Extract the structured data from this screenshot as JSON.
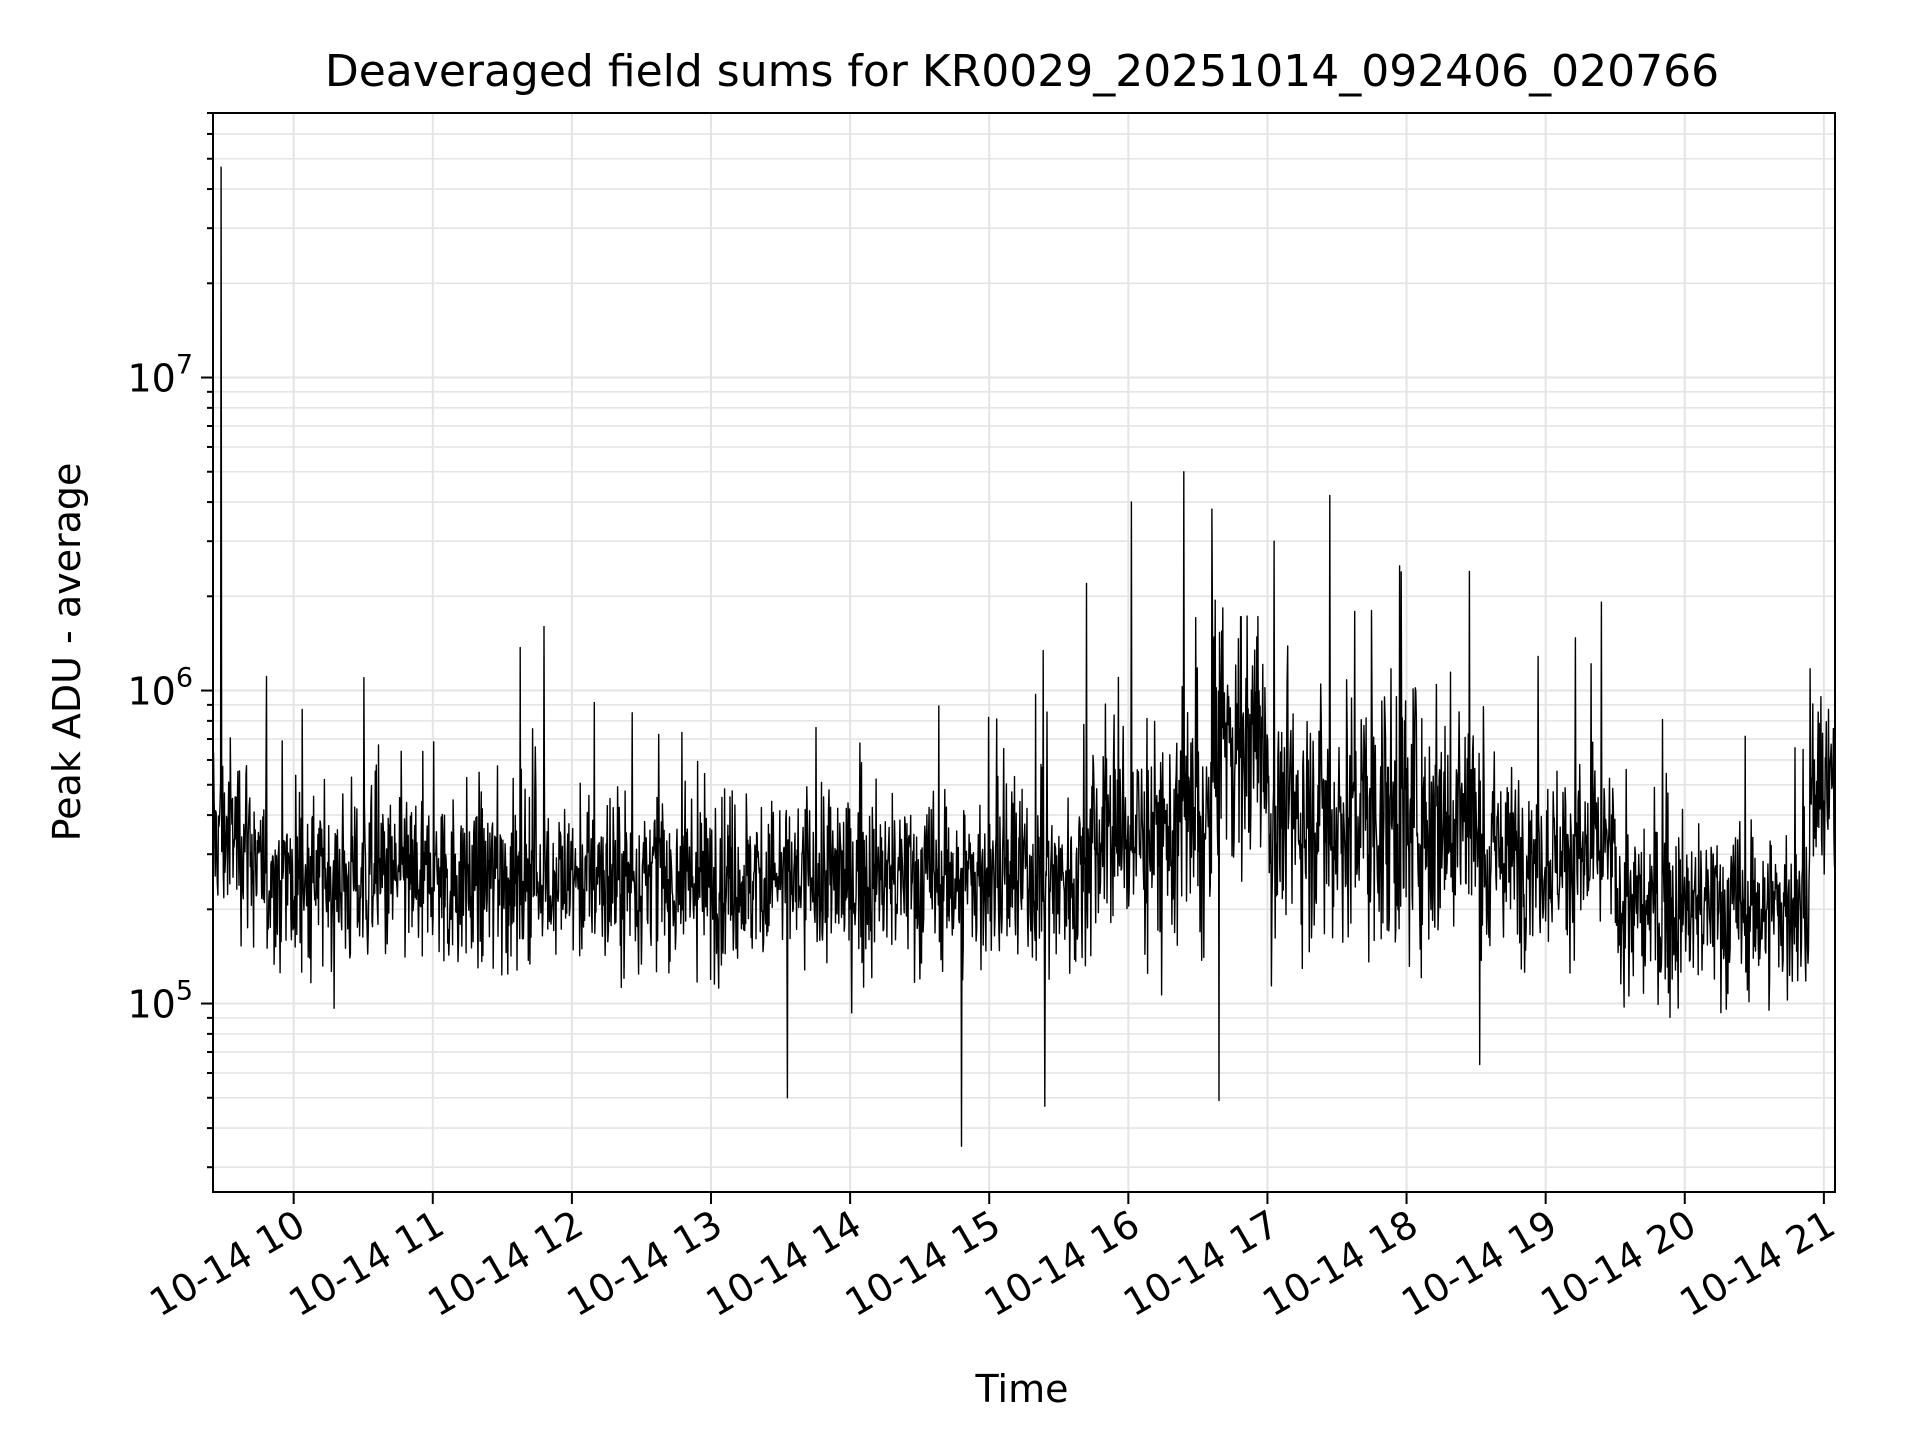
{
  "chart_data": {
    "type": "line",
    "title": "Deaveraged field sums for KR0029_20251014_092406_020766",
    "xlabel": "Time",
    "ylabel": "Peak ADU - average",
    "yscale": "log",
    "ylim": [
      25000,
      70000000
    ],
    "xlim_hours": [
      9.42,
      21.08
    ],
    "grid": true,
    "x_ticks": [
      {
        "hour": 10,
        "label": "10-14 10"
      },
      {
        "hour": 11,
        "label": "10-14 11"
      },
      {
        "hour": 12,
        "label": "10-14 12"
      },
      {
        "hour": 13,
        "label": "10-14 13"
      },
      {
        "hour": 14,
        "label": "10-14 14"
      },
      {
        "hour": 15,
        "label": "10-14 15"
      },
      {
        "hour": 16,
        "label": "10-14 16"
      },
      {
        "hour": 17,
        "label": "10-14 17"
      },
      {
        "hour": 18,
        "label": "10-14 18"
      },
      {
        "hour": 19,
        "label": "10-14 19"
      },
      {
        "hour": 20,
        "label": "10-14 20"
      },
      {
        "hour": 21,
        "label": "10-14 21"
      }
    ],
    "y_ticks": [
      {
        "value": 100000,
        "base": "10",
        "exp": "5"
      },
      {
        "value": 1000000,
        "base": "10",
        "exp": "6"
      },
      {
        "value": 10000000,
        "base": "10",
        "exp": "7"
      }
    ],
    "series": [
      {
        "name": "field sum",
        "color": "#000000",
        "baseline_segments": [
          {
            "start_hour": 9.42,
            "end_hour": 9.7,
            "level": 350000
          },
          {
            "start_hour": 9.7,
            "end_hour": 15.7,
            "level": 250000
          },
          {
            "start_hour": 15.7,
            "end_hour": 16.6,
            "level": 350000
          },
          {
            "start_hour": 16.6,
            "end_hour": 17.0,
            "level": 700000
          },
          {
            "start_hour": 17.0,
            "end_hour": 18.5,
            "level": 400000
          },
          {
            "start_hour": 18.5,
            "end_hour": 19.5,
            "level": 300000
          },
          {
            "start_hour": 19.5,
            "end_hour": 20.9,
            "level": 200000
          },
          {
            "start_hour": 20.9,
            "end_hour": 21.08,
            "level": 450000
          }
        ],
        "notable_points": [
          {
            "hour": 9.48,
            "value": 47000000
          },
          {
            "hour": 11.8,
            "value": 1600000
          },
          {
            "hour": 15.7,
            "value": 2200000
          },
          {
            "hour": 16.02,
            "value": 4000000
          },
          {
            "hour": 16.4,
            "value": 5000000
          },
          {
            "hour": 16.6,
            "value": 3800000
          },
          {
            "hour": 17.05,
            "value": 3000000
          },
          {
            "hour": 17.45,
            "value": 4200000
          },
          {
            "hour": 17.95,
            "value": 2500000
          },
          {
            "hour": 18.45,
            "value": 2400000
          },
          {
            "hour": 14.8,
            "value": 35000
          },
          {
            "hour": 13.55,
            "value": 50000
          },
          {
            "hour": 15.4,
            "value": 47000
          },
          {
            "hour": 16.65,
            "value": 49000
          }
        ]
      }
    ]
  }
}
